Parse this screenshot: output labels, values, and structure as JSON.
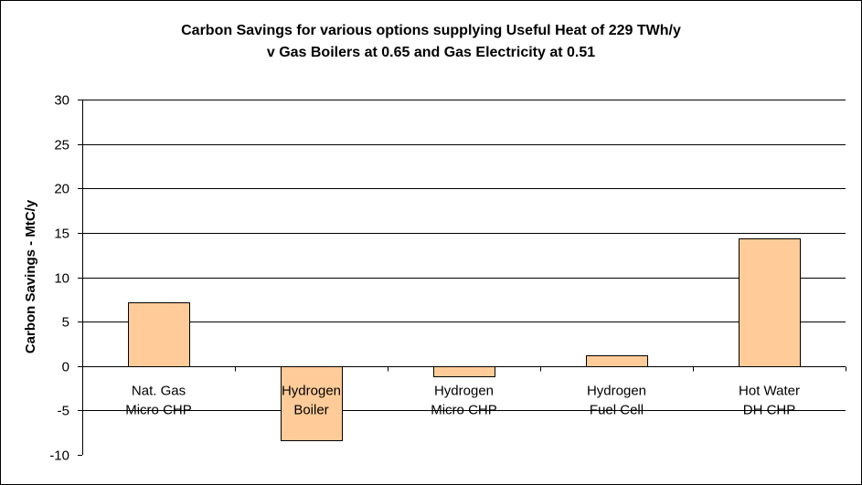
{
  "chart_data": {
    "type": "bar",
    "title_line1": "Carbon Savings for various options supplying Useful Heat of 229 TWh/y",
    "title_line2": "v Gas Boilers at 0.65 and Gas Electricity at 0.51",
    "ylabel": "Carbon Savings - MtC/y",
    "xlabel": "",
    "ylim": [
      -10,
      30
    ],
    "yticks": [
      30,
      25,
      20,
      15,
      10,
      5,
      0,
      -5,
      -10
    ],
    "categories": [
      [
        "Nat. Gas",
        "Micro CHP"
      ],
      [
        "Hydrogen",
        "Boiler"
      ],
      [
        "Hydrogen",
        "Micro CHP"
      ],
      [
        "Hydrogen",
        "Fuel Cell"
      ],
      [
        "Hot Water",
        "DH CHP"
      ]
    ],
    "values": [
      7.2,
      -8.3,
      -1.1,
      1.2,
      14.4
    ],
    "grid": true,
    "legend": "none",
    "bar_color": "#ffcc99"
  }
}
